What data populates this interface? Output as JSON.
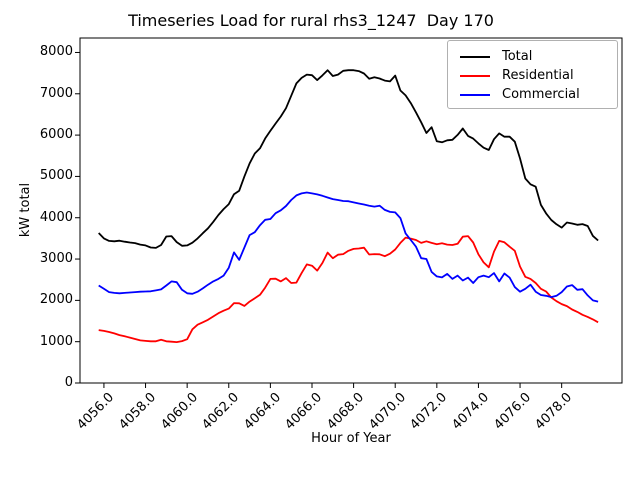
{
  "figure": {
    "title": "Timeseries Load for rural rhs3_1247  Day 170"
  },
  "chart_data": {
    "type": "line",
    "title": "Timeseries Load for rural rhs3_1247  Day 170",
    "xlabel": "Hour of Year",
    "ylabel": "kW total",
    "xlim": [
      4054.85,
      4080.9
    ],
    "ylim": [
      0,
      8350
    ],
    "grid": false,
    "legend_position": "upper right",
    "xticks": {
      "values": [
        4056,
        4058,
        4060,
        4062,
        4064,
        4066,
        4068,
        4070,
        4072,
        4074,
        4076,
        4078
      ],
      "labels": [
        "4056.0",
        "4058.0",
        "4060.0",
        "4062.0",
        "4064.0",
        "4066.0",
        "4068.0",
        "4070.0",
        "4072.0",
        "4074.0",
        "4076.0",
        "4078.0"
      ]
    },
    "yticks": {
      "values": [
        0,
        1000,
        2000,
        3000,
        4000,
        5000,
        6000,
        7000,
        8000
      ],
      "labels": [
        "0",
        "1000",
        "2000",
        "3000",
        "4000",
        "5000",
        "6000",
        "7000",
        "8000"
      ]
    },
    "x": [
      4055.75,
      4056,
      4056.25,
      4056.5,
      4056.75,
      4057,
      4057.25,
      4057.5,
      4057.75,
      4058,
      4058.25,
      4058.5,
      4058.75,
      4059,
      4059.25,
      4059.5,
      4059.75,
      4060,
      4060.25,
      4060.5,
      4060.75,
      4061,
      4061.25,
      4061.5,
      4061.75,
      4062,
      4062.25,
      4062.5,
      4062.75,
      4063,
      4063.25,
      4063.5,
      4063.75,
      4064,
      4064.25,
      4064.5,
      4064.75,
      4065,
      4065.25,
      4065.5,
      4065.75,
      4066,
      4066.25,
      4066.5,
      4066.75,
      4067,
      4067.25,
      4067.5,
      4067.75,
      4068,
      4068.25,
      4068.5,
      4068.75,
      4069,
      4069.25,
      4069.5,
      4069.75,
      4070,
      4070.25,
      4070.5,
      4070.75,
      4071,
      4071.25,
      4071.5,
      4071.75,
      4072,
      4072.25,
      4072.5,
      4072.75,
      4073,
      4073.25,
      4073.5,
      4073.75,
      4074,
      4074.25,
      4074.5,
      4074.75,
      4075,
      4075.25,
      4075.5,
      4075.75,
      4076,
      4076.25,
      4076.5,
      4076.75,
      4077,
      4077.25,
      4077.5,
      4077.75,
      4078,
      4078.25,
      4078.5,
      4078.75,
      4079,
      4079.25,
      4079.5,
      4079.75
    ],
    "series": [
      {
        "name": "Total",
        "color": "#000000",
        "values": [
          3630,
          3500,
          3440,
          3430,
          3445,
          3420,
          3400,
          3385,
          3350,
          3330,
          3280,
          3270,
          3340,
          3545,
          3555,
          3410,
          3320,
          3330,
          3395,
          3500,
          3625,
          3745,
          3900,
          4065,
          4210,
          4330,
          4570,
          4655,
          5000,
          5315,
          5555,
          5680,
          5920,
          6105,
          6280,
          6450,
          6650,
          6950,
          7250,
          7385,
          7465,
          7450,
          7330,
          7445,
          7570,
          7430,
          7465,
          7555,
          7570,
          7570,
          7550,
          7490,
          7365,
          7400,
          7370,
          7320,
          7300,
          7440,
          7080,
          6960,
          6775,
          6550,
          6310,
          6050,
          6190,
          5850,
          5825,
          5875,
          5885,
          6005,
          6160,
          5980,
          5915,
          5800,
          5695,
          5640,
          5900,
          6040,
          5960,
          5960,
          5840,
          5435,
          4950,
          4810,
          4750,
          4310,
          4105,
          3945,
          3840,
          3760,
          3885,
          3860,
          3830,
          3845,
          3800,
          3560,
          3450
        ]
      },
      {
        "name": "Residential",
        "color": "#ff0000",
        "values": [
          1280,
          1260,
          1235,
          1200,
          1160,
          1130,
          1100,
          1065,
          1030,
          1020,
          1010,
          1010,
          1045,
          1010,
          1000,
          990,
          1015,
          1060,
          1300,
          1410,
          1470,
          1530,
          1610,
          1690,
          1750,
          1800,
          1935,
          1930,
          1865,
          1970,
          2050,
          2135,
          2310,
          2520,
          2525,
          2460,
          2540,
          2420,
          2430,
          2660,
          2870,
          2840,
          2720,
          2905,
          3155,
          3020,
          3105,
          3120,
          3200,
          3245,
          3255,
          3275,
          3110,
          3120,
          3115,
          3070,
          3130,
          3230,
          3390,
          3520,
          3495,
          3460,
          3390,
          3430,
          3390,
          3360,
          3380,
          3350,
          3340,
          3370,
          3540,
          3555,
          3400,
          3115,
          2920,
          2800,
          3180,
          3440,
          3405,
          3300,
          3200,
          2820,
          2570,
          2520,
          2420,
          2280,
          2215,
          2070,
          1980,
          1910,
          1860,
          1780,
          1720,
          1650,
          1600,
          1540,
          1470
        ]
      },
      {
        "name": "Commercial",
        "color": "#0000ff",
        "values": [
          2360,
          2280,
          2200,
          2180,
          2170,
          2180,
          2190,
          2200,
          2210,
          2215,
          2220,
          2240,
          2265,
          2360,
          2460,
          2440,
          2255,
          2170,
          2160,
          2210,
          2290,
          2380,
          2460,
          2520,
          2600,
          2790,
          3160,
          2980,
          3280,
          3580,
          3650,
          3820,
          3950,
          3970,
          4110,
          4180,
          4285,
          4430,
          4540,
          4590,
          4610,
          4590,
          4565,
          4530,
          4490,
          4450,
          4430,
          4405,
          4400,
          4370,
          4345,
          4320,
          4290,
          4270,
          4290,
          4190,
          4140,
          4130,
          3990,
          3620,
          3460,
          3300,
          3020,
          3000,
          2690,
          2580,
          2555,
          2640,
          2520,
          2600,
          2480,
          2550,
          2420,
          2560,
          2600,
          2560,
          2660,
          2460,
          2650,
          2550,
          2320,
          2210,
          2280,
          2380,
          2210,
          2130,
          2110,
          2080,
          2110,
          2200,
          2335,
          2370,
          2255,
          2270,
          2120,
          2000,
          1970
        ]
      }
    ]
  }
}
